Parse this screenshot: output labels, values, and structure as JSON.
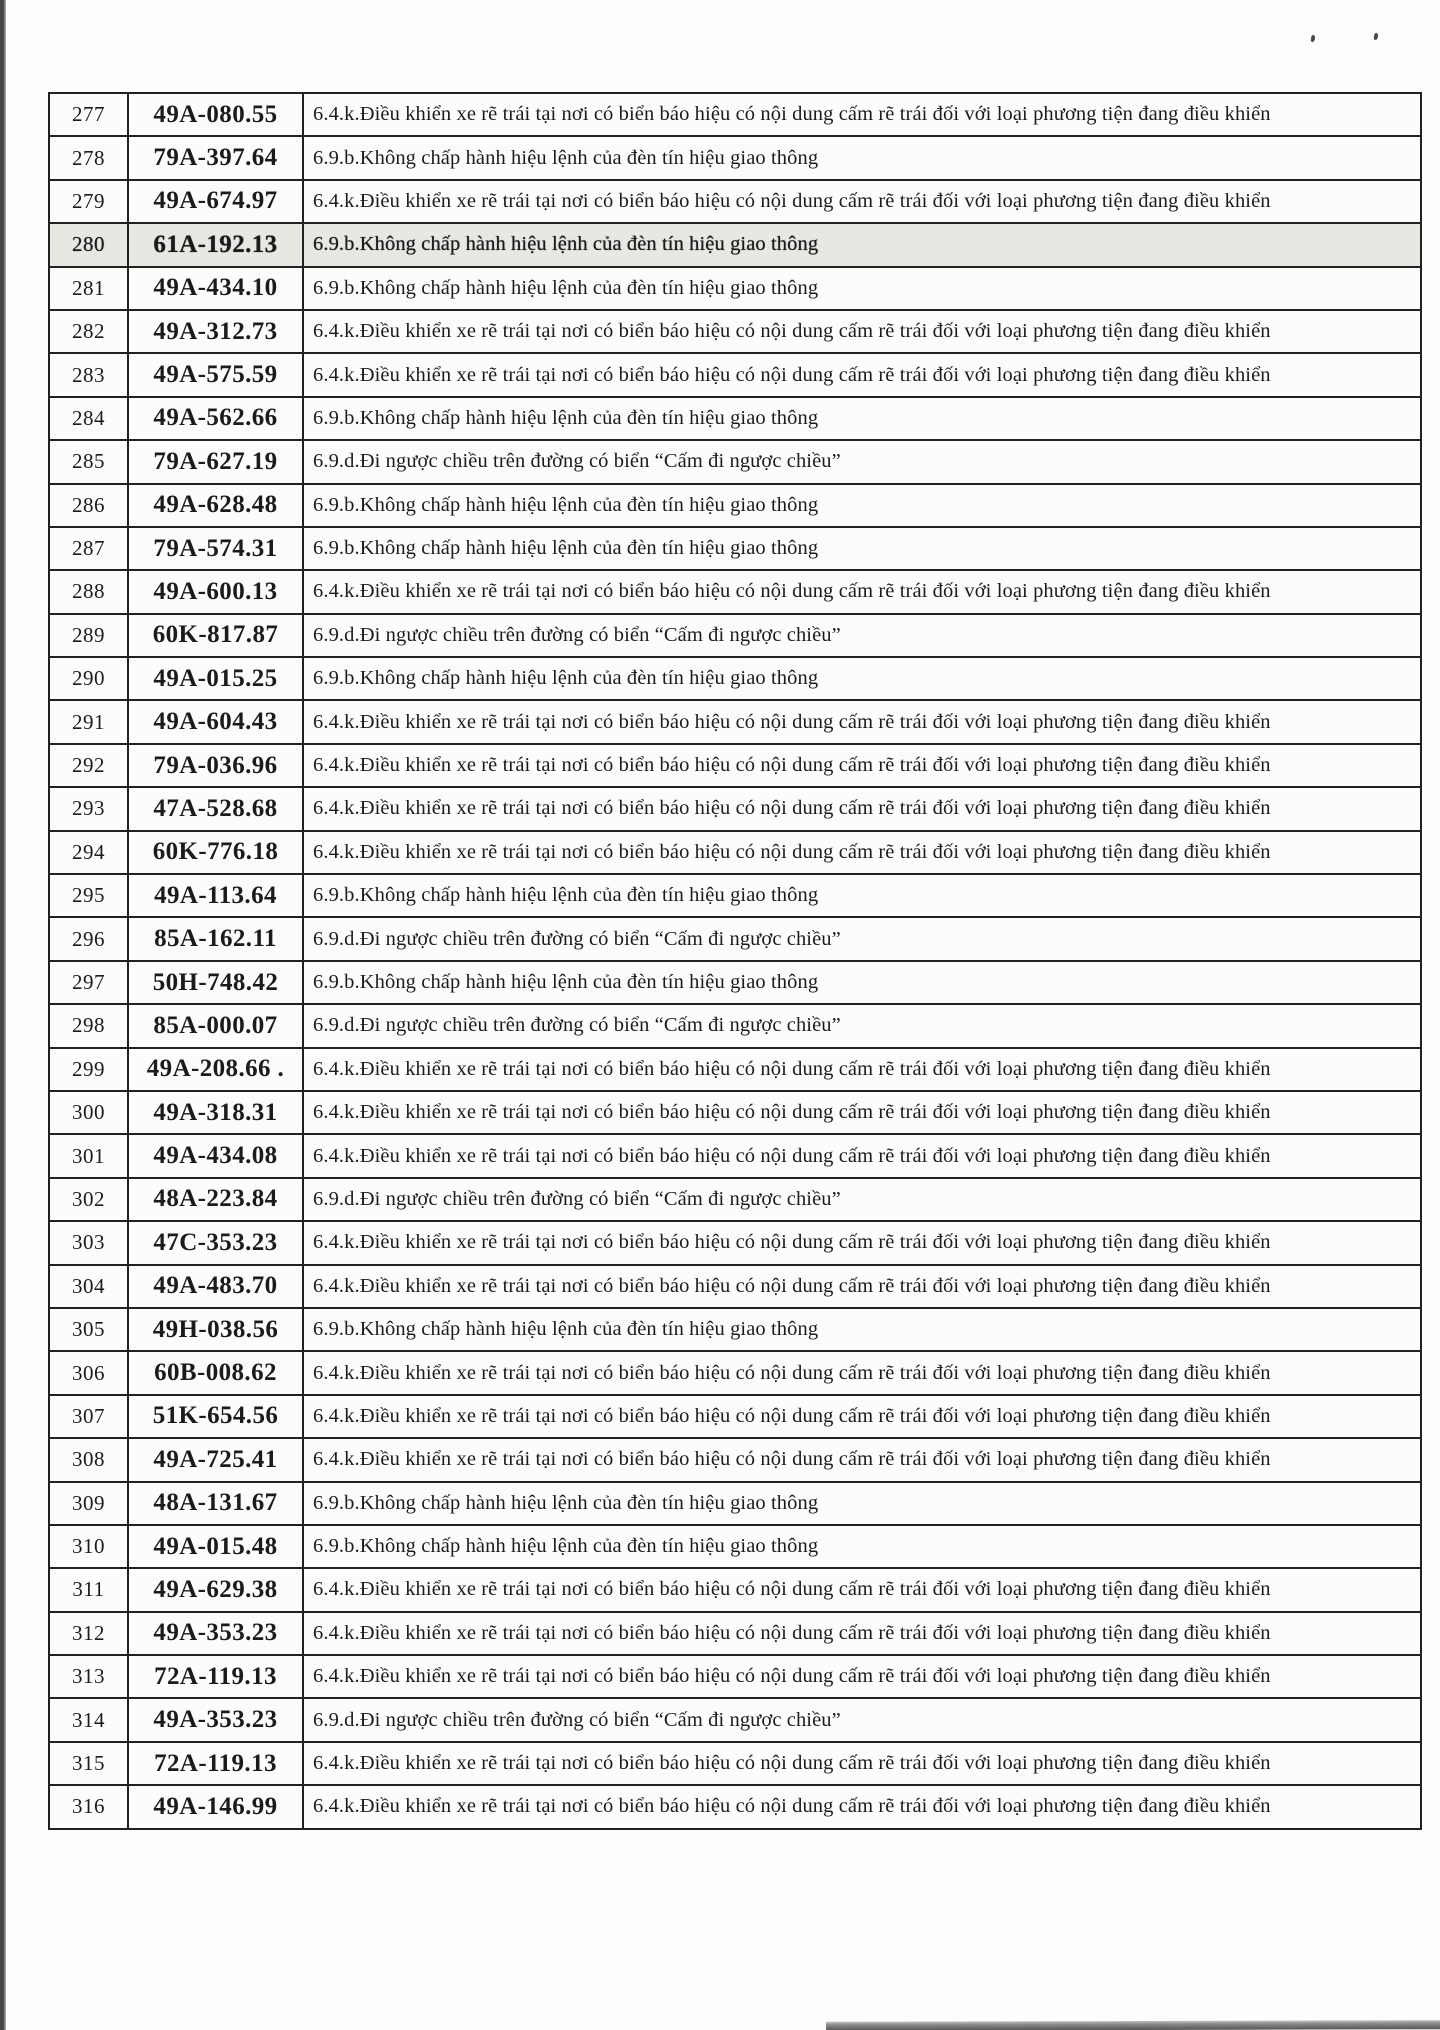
{
  "violations": {
    "v64k": "6.4.k.Điều khiển xe rẽ trái tại nơi có biển báo hiệu có nội dung cấm rẽ trái đối với loại phương tiện đang điều khiển",
    "v69b": "6.9.b.Không chấp hành hiệu lệnh của đèn tín hiệu giao thông",
    "v69d": "6.9.d.Đi ngược chiều trên đường có biển “Cấm đi ngược chiều”"
  },
  "table": {
    "rows": [
      {
        "no": "277",
        "plate": "49A-080.55",
        "v": "v64k"
      },
      {
        "no": "278",
        "plate": "79A-397.64",
        "v": "v69b"
      },
      {
        "no": "279",
        "plate": "49A-674.97",
        "v": "v64k"
      },
      {
        "no": "280",
        "plate": "61A-192.13",
        "v": "v69b",
        "shaded": true
      },
      {
        "no": "281",
        "plate": "49A-434.10",
        "v": "v69b"
      },
      {
        "no": "282",
        "plate": "49A-312.73",
        "v": "v64k"
      },
      {
        "no": "283",
        "plate": "49A-575.59",
        "v": "v64k"
      },
      {
        "no": "284",
        "plate": "49A-562.66",
        "v": "v69b"
      },
      {
        "no": "285",
        "plate": "79A-627.19",
        "v": "v69d"
      },
      {
        "no": "286",
        "plate": "49A-628.48",
        "v": "v69b"
      },
      {
        "no": "287",
        "plate": "79A-574.31",
        "v": "v69b"
      },
      {
        "no": "288",
        "plate": "49A-600.13",
        "v": "v64k"
      },
      {
        "no": "289",
        "plate": "60K-817.87",
        "v": "v69d"
      },
      {
        "no": "290",
        "plate": "49A-015.25",
        "v": "v69b"
      },
      {
        "no": "291",
        "plate": "49A-604.43",
        "v": "v64k"
      },
      {
        "no": "292",
        "plate": "79A-036.96",
        "v": "v64k"
      },
      {
        "no": "293",
        "plate": "47A-528.68",
        "v": "v64k"
      },
      {
        "no": "294",
        "plate": "60K-776.18",
        "v": "v64k"
      },
      {
        "no": "295",
        "plate": "49A-113.64",
        "v": "v69b"
      },
      {
        "no": "296",
        "plate": "85A-162.11",
        "v": "v69d"
      },
      {
        "no": "297",
        "plate": "50H-748.42",
        "v": "v69b"
      },
      {
        "no": "298",
        "plate": "85A-000.07",
        "v": "v69d"
      },
      {
        "no": "299",
        "plate": "49A-208.66 .",
        "v": "v64k"
      },
      {
        "no": "300",
        "plate": "49A-318.31",
        "v": "v64k"
      },
      {
        "no": "301",
        "plate": "49A-434.08",
        "v": "v64k"
      },
      {
        "no": "302",
        "plate": "48A-223.84",
        "v": "v69d"
      },
      {
        "no": "303",
        "plate": "47C-353.23",
        "v": "v64k"
      },
      {
        "no": "304",
        "plate": "49A-483.70",
        "v": "v64k"
      },
      {
        "no": "305",
        "plate": "49H-038.56",
        "v": "v69b"
      },
      {
        "no": "306",
        "plate": "60B-008.62",
        "v": "v64k"
      },
      {
        "no": "307",
        "plate": "51K-654.56",
        "v": "v64k"
      },
      {
        "no": "308",
        "plate": "49A-725.41",
        "v": "v64k"
      },
      {
        "no": "309",
        "plate": "48A-131.67",
        "v": "v69b"
      },
      {
        "no": "310",
        "plate": "49A-015.48",
        "v": "v69b"
      },
      {
        "no": "311",
        "plate": "49A-629.38",
        "v": "v64k"
      },
      {
        "no": "312",
        "plate": "49A-353.23",
        "v": "v64k"
      },
      {
        "no": "313",
        "plate": "72A-119.13",
        "v": "v64k"
      },
      {
        "no": "314",
        "plate": "49A-353.23",
        "v": "v69d"
      },
      {
        "no": "315",
        "plate": "72A-119.13",
        "v": "v64k"
      },
      {
        "no": "316",
        "plate": "49A-146.99",
        "v": "v64k"
      }
    ]
  }
}
